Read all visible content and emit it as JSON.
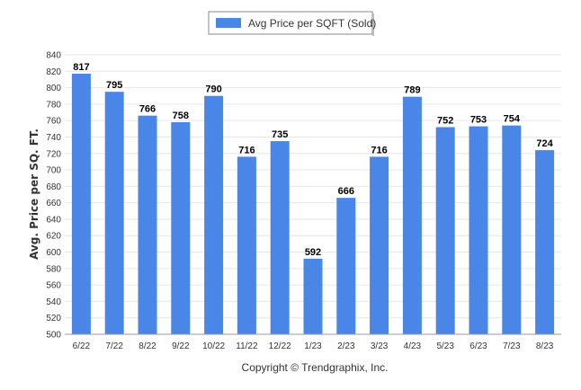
{
  "chart_data": {
    "type": "bar",
    "categories": [
      "6/22",
      "7/22",
      "8/22",
      "9/22",
      "10/22",
      "11/22",
      "12/22",
      "1/23",
      "2/23",
      "3/23",
      "4/23",
      "5/23",
      "6/23",
      "7/23",
      "8/23"
    ],
    "series": [
      {
        "name": "Avg Price per SQFT (Sold)",
        "values": [
          817,
          795,
          766,
          758,
          790,
          716,
          735,
          592,
          666,
          716,
          789,
          752,
          753,
          754,
          724
        ]
      }
    ],
    "data_labels": [
      "817",
      "795",
      "766",
      "758",
      "790",
      "716",
      "735",
      "592",
      "666",
      "716",
      "789",
      "752",
      "753",
      "754",
      "724"
    ],
    "ylabel": "Avg. Price per SQ. FT.",
    "xlabel": "",
    "ylim": [
      500,
      840
    ],
    "yticks": [
      "500",
      "520",
      "540",
      "560",
      "580",
      "600",
      "620",
      "640",
      "660",
      "680",
      "700",
      "720",
      "740",
      "760",
      "780",
      "800",
      "820",
      "840"
    ],
    "grid": true,
    "legend_position": "top-center",
    "bar_color": "#4a86e8"
  },
  "footer": {
    "copyright": "Copyright © Trendgraphix, Inc."
  }
}
